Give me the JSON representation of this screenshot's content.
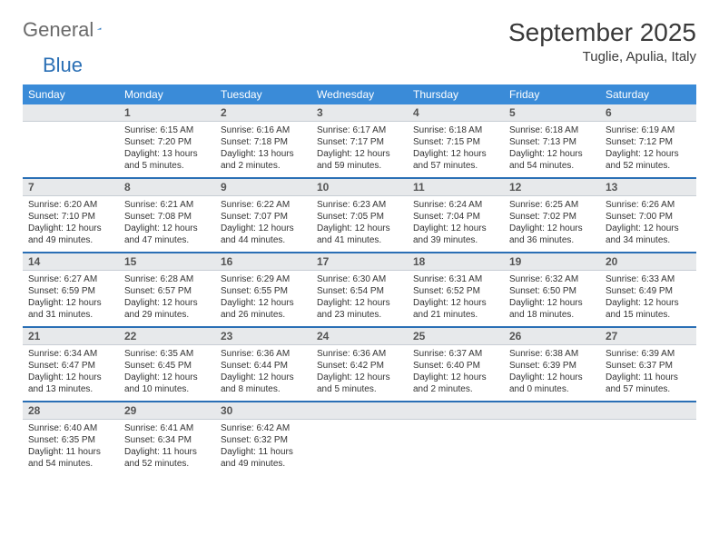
{
  "logo": {
    "text_a": "General",
    "text_b": "Blue"
  },
  "header": {
    "title": "September 2025",
    "location": "Tuglie, Apulia, Italy"
  },
  "colors": {
    "header_bg": "#3a8bd8",
    "header_text": "#ffffff",
    "daynum_bg": "#e7e9eb",
    "rule": "#2a6fb5",
    "logo_gray": "#6a6a6a",
    "logo_blue": "#2a6fb5"
  },
  "weekdays": [
    "Sunday",
    "Monday",
    "Tuesday",
    "Wednesday",
    "Thursday",
    "Friday",
    "Saturday"
  ],
  "weeks": [
    [
      {
        "day": "",
        "sunrise": "",
        "sunset": "",
        "daylight": ""
      },
      {
        "day": "1",
        "sunrise": "Sunrise: 6:15 AM",
        "sunset": "Sunset: 7:20 PM",
        "daylight": "Daylight: 13 hours and 5 minutes."
      },
      {
        "day": "2",
        "sunrise": "Sunrise: 6:16 AM",
        "sunset": "Sunset: 7:18 PM",
        "daylight": "Daylight: 13 hours and 2 minutes."
      },
      {
        "day": "3",
        "sunrise": "Sunrise: 6:17 AM",
        "sunset": "Sunset: 7:17 PM",
        "daylight": "Daylight: 12 hours and 59 minutes."
      },
      {
        "day": "4",
        "sunrise": "Sunrise: 6:18 AM",
        "sunset": "Sunset: 7:15 PM",
        "daylight": "Daylight: 12 hours and 57 minutes."
      },
      {
        "day": "5",
        "sunrise": "Sunrise: 6:18 AM",
        "sunset": "Sunset: 7:13 PM",
        "daylight": "Daylight: 12 hours and 54 minutes."
      },
      {
        "day": "6",
        "sunrise": "Sunrise: 6:19 AM",
        "sunset": "Sunset: 7:12 PM",
        "daylight": "Daylight: 12 hours and 52 minutes."
      }
    ],
    [
      {
        "day": "7",
        "sunrise": "Sunrise: 6:20 AM",
        "sunset": "Sunset: 7:10 PM",
        "daylight": "Daylight: 12 hours and 49 minutes."
      },
      {
        "day": "8",
        "sunrise": "Sunrise: 6:21 AM",
        "sunset": "Sunset: 7:08 PM",
        "daylight": "Daylight: 12 hours and 47 minutes."
      },
      {
        "day": "9",
        "sunrise": "Sunrise: 6:22 AM",
        "sunset": "Sunset: 7:07 PM",
        "daylight": "Daylight: 12 hours and 44 minutes."
      },
      {
        "day": "10",
        "sunrise": "Sunrise: 6:23 AM",
        "sunset": "Sunset: 7:05 PM",
        "daylight": "Daylight: 12 hours and 41 minutes."
      },
      {
        "day": "11",
        "sunrise": "Sunrise: 6:24 AM",
        "sunset": "Sunset: 7:04 PM",
        "daylight": "Daylight: 12 hours and 39 minutes."
      },
      {
        "day": "12",
        "sunrise": "Sunrise: 6:25 AM",
        "sunset": "Sunset: 7:02 PM",
        "daylight": "Daylight: 12 hours and 36 minutes."
      },
      {
        "day": "13",
        "sunrise": "Sunrise: 6:26 AM",
        "sunset": "Sunset: 7:00 PM",
        "daylight": "Daylight: 12 hours and 34 minutes."
      }
    ],
    [
      {
        "day": "14",
        "sunrise": "Sunrise: 6:27 AM",
        "sunset": "Sunset: 6:59 PM",
        "daylight": "Daylight: 12 hours and 31 minutes."
      },
      {
        "day": "15",
        "sunrise": "Sunrise: 6:28 AM",
        "sunset": "Sunset: 6:57 PM",
        "daylight": "Daylight: 12 hours and 29 minutes."
      },
      {
        "day": "16",
        "sunrise": "Sunrise: 6:29 AM",
        "sunset": "Sunset: 6:55 PM",
        "daylight": "Daylight: 12 hours and 26 minutes."
      },
      {
        "day": "17",
        "sunrise": "Sunrise: 6:30 AM",
        "sunset": "Sunset: 6:54 PM",
        "daylight": "Daylight: 12 hours and 23 minutes."
      },
      {
        "day": "18",
        "sunrise": "Sunrise: 6:31 AM",
        "sunset": "Sunset: 6:52 PM",
        "daylight": "Daylight: 12 hours and 21 minutes."
      },
      {
        "day": "19",
        "sunrise": "Sunrise: 6:32 AM",
        "sunset": "Sunset: 6:50 PM",
        "daylight": "Daylight: 12 hours and 18 minutes."
      },
      {
        "day": "20",
        "sunrise": "Sunrise: 6:33 AM",
        "sunset": "Sunset: 6:49 PM",
        "daylight": "Daylight: 12 hours and 15 minutes."
      }
    ],
    [
      {
        "day": "21",
        "sunrise": "Sunrise: 6:34 AM",
        "sunset": "Sunset: 6:47 PM",
        "daylight": "Daylight: 12 hours and 13 minutes."
      },
      {
        "day": "22",
        "sunrise": "Sunrise: 6:35 AM",
        "sunset": "Sunset: 6:45 PM",
        "daylight": "Daylight: 12 hours and 10 minutes."
      },
      {
        "day": "23",
        "sunrise": "Sunrise: 6:36 AM",
        "sunset": "Sunset: 6:44 PM",
        "daylight": "Daylight: 12 hours and 8 minutes."
      },
      {
        "day": "24",
        "sunrise": "Sunrise: 6:36 AM",
        "sunset": "Sunset: 6:42 PM",
        "daylight": "Daylight: 12 hours and 5 minutes."
      },
      {
        "day": "25",
        "sunrise": "Sunrise: 6:37 AM",
        "sunset": "Sunset: 6:40 PM",
        "daylight": "Daylight: 12 hours and 2 minutes."
      },
      {
        "day": "26",
        "sunrise": "Sunrise: 6:38 AM",
        "sunset": "Sunset: 6:39 PM",
        "daylight": "Daylight: 12 hours and 0 minutes."
      },
      {
        "day": "27",
        "sunrise": "Sunrise: 6:39 AM",
        "sunset": "Sunset: 6:37 PM",
        "daylight": "Daylight: 11 hours and 57 minutes."
      }
    ],
    [
      {
        "day": "28",
        "sunrise": "Sunrise: 6:40 AM",
        "sunset": "Sunset: 6:35 PM",
        "daylight": "Daylight: 11 hours and 54 minutes."
      },
      {
        "day": "29",
        "sunrise": "Sunrise: 6:41 AM",
        "sunset": "Sunset: 6:34 PM",
        "daylight": "Daylight: 11 hours and 52 minutes."
      },
      {
        "day": "30",
        "sunrise": "Sunrise: 6:42 AM",
        "sunset": "Sunset: 6:32 PM",
        "daylight": "Daylight: 11 hours and 49 minutes."
      },
      {
        "day": "",
        "sunrise": "",
        "sunset": "",
        "daylight": ""
      },
      {
        "day": "",
        "sunrise": "",
        "sunset": "",
        "daylight": ""
      },
      {
        "day": "",
        "sunrise": "",
        "sunset": "",
        "daylight": ""
      },
      {
        "day": "",
        "sunrise": "",
        "sunset": "",
        "daylight": ""
      }
    ]
  ]
}
